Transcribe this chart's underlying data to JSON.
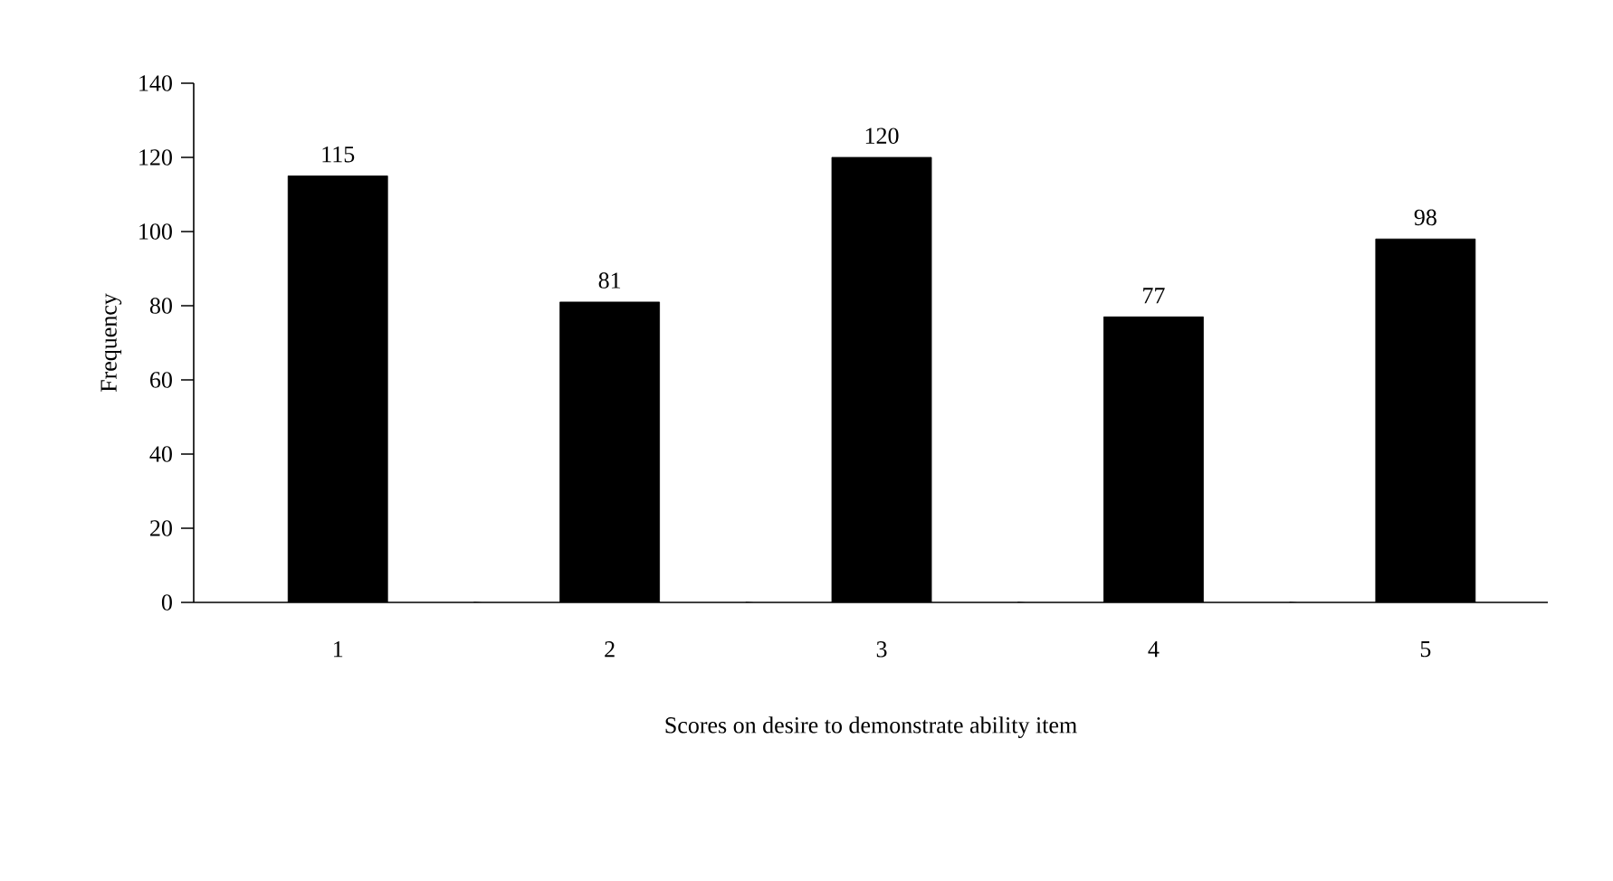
{
  "chart_data": {
    "type": "bar",
    "xlabel": "Scores on desire to demonstrate ability item",
    "ylabel": "Frequency",
    "categories": [
      "1",
      "2",
      "3",
      "4",
      "5"
    ],
    "values": [
      115,
      81,
      120,
      77,
      98
    ],
    "color": "#000000",
    "data_labels": true,
    "grid": false,
    "ylim": [
      0,
      140
    ],
    "yticks": [
      0,
      20,
      40,
      60,
      80,
      100,
      120,
      140
    ]
  }
}
